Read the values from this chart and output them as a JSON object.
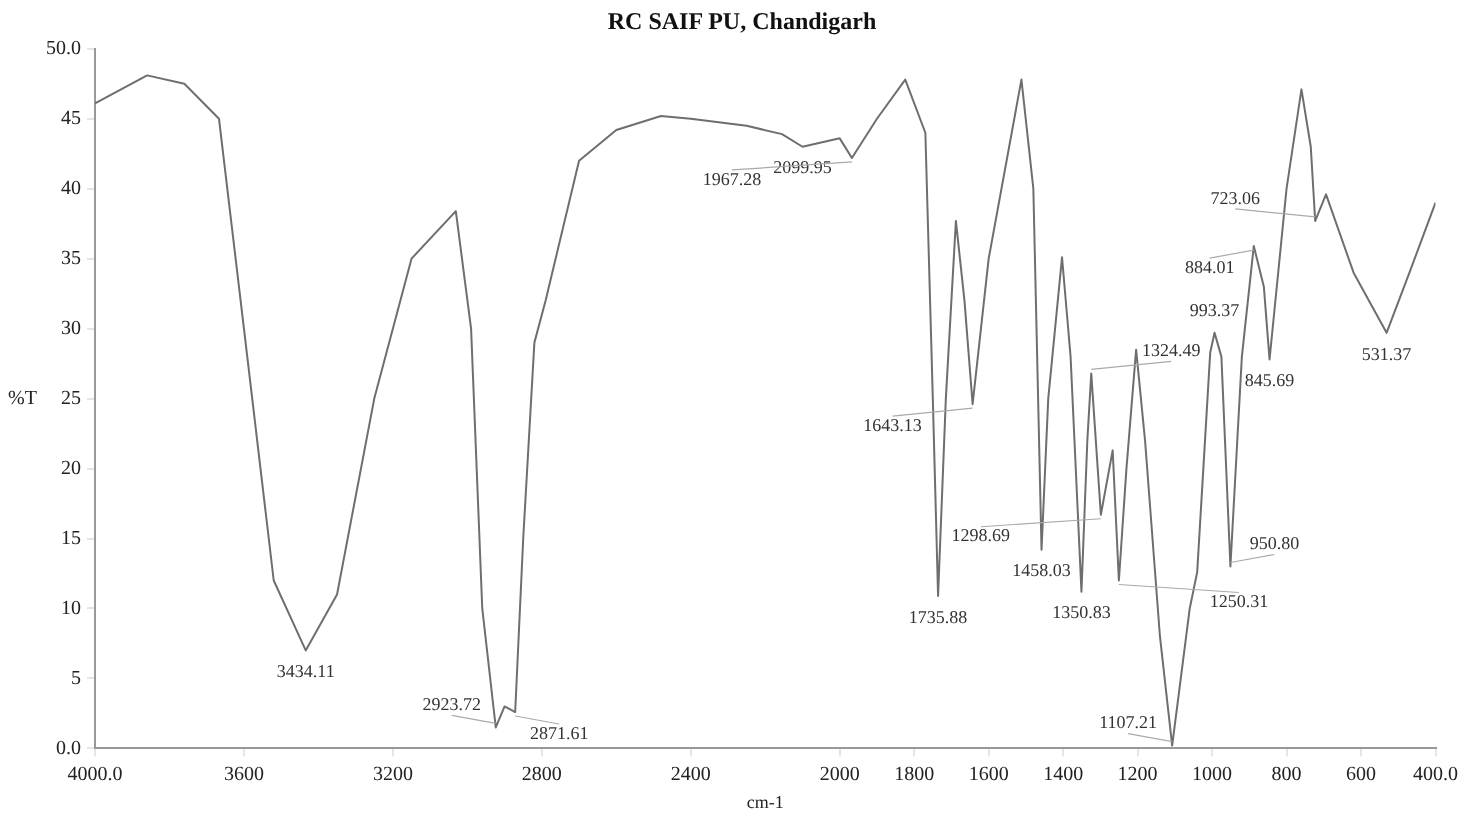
{
  "chart_data": {
    "type": "line",
    "title": "RC SAIF PU, Chandigarh",
    "xlabel": "cm-1",
    "ylabel": "%T",
    "xlim": [
      4000,
      400
    ],
    "xticks": [
      {
        "value": 4000,
        "label": "4000.0"
      },
      3600,
      3200,
      2800,
      2400,
      2000,
      1800,
      1600,
      1400,
      1200,
      1000,
      800,
      600,
      {
        "value": 400,
        "label": "400.0"
      }
    ],
    "ylim": [
      0,
      50
    ],
    "yticks": [
      {
        "value": 0,
        "label": "0.0"
      },
      5,
      10,
      15,
      20,
      25,
      30,
      35,
      40,
      45,
      {
        "value": 50,
        "label": "50.0"
      }
    ],
    "legend": false,
    "marker": "none",
    "line_style": "solid",
    "series": [
      {
        "color": "#6e6e6e",
        "x": [
          4000,
          3860,
          3760,
          3667,
          3600,
          3520,
          3434.11,
          3350,
          3250,
          3150,
          3031,
          2990,
          2960,
          2923.72,
          2900,
          2871.61,
          2850,
          2820,
          2790,
          2700,
          2600,
          2480,
          2400,
          2250,
          2155,
          2099.95,
          2000,
          1967.28,
          1900,
          1824,
          1770,
          1750,
          1735.88,
          1715,
          1688,
          1665,
          1643.13,
          1600,
          1512,
          1480,
          1458.03,
          1440,
          1403,
          1380,
          1350.83,
          1335,
          1324.49,
          1298.69,
          1267,
          1250.31,
          1230,
          1204,
          1180,
          1140,
          1107.21,
          1060,
          1040,
          1005,
          993.37,
          975,
          950.8,
          920,
          888,
          861,
          845.69,
          800,
          760,
          735,
          723.06,
          694,
          620,
          531.37,
          470,
          400
        ],
        "values": [
          46.1,
          48.1,
          47.5,
          45,
          30,
          12,
          7,
          11,
          25,
          35,
          38.4,
          30,
          10,
          1.5,
          3,
          2.6,
          15,
          29,
          32,
          42,
          44.2,
          45.2,
          45,
          44.5,
          43.9,
          43,
          43.6,
          42.2,
          45,
          47.8,
          44,
          25,
          10.9,
          25,
          37.7,
          32,
          24.6,
          35,
          47.8,
          40,
          14.2,
          25,
          35.1,
          28,
          11.2,
          22,
          26.8,
          16.7,
          21.3,
          12,
          20,
          28.5,
          22,
          8,
          0.2,
          10,
          12.6,
          28.3,
          29.7,
          28,
          13,
          28,
          35.9,
          33,
          27.8,
          40,
          47.1,
          43,
          37.7,
          39.6,
          34,
          29.7,
          34,
          39
        ]
      }
    ],
    "annotations": [
      {
        "text": "3434.11",
        "x": 3434.11,
        "y": 7
      },
      {
        "text": "2923.72",
        "x": 2923.72,
        "y": 1.5
      },
      {
        "text": "2871.61",
        "x": 2871.61,
        "y": 2.6
      },
      {
        "text": "2099.95",
        "x": 2099.95,
        "y": 43
      },
      {
        "text": "1967.28",
        "x": 1967.28,
        "y": 42.2
      },
      {
        "text": "1735.88",
        "x": 1735.88,
        "y": 10.9
      },
      {
        "text": "1643.13",
        "x": 1643.13,
        "y": 24.6
      },
      {
        "text": "1458.03",
        "x": 1458.03,
        "y": 14.2
      },
      {
        "text": "1350.83",
        "x": 1350.83,
        "y": 11.2
      },
      {
        "text": "1324.49",
        "x": 1324.49,
        "y": 26.8
      },
      {
        "text": "1298.69",
        "x": 1298.69,
        "y": 16.7
      },
      {
        "text": "1250.31",
        "x": 1250.31,
        "y": 12
      },
      {
        "text": "1107.21",
        "x": 1107.21,
        "y": 0.2
      },
      {
        "text": "993.37",
        "x": 993.37,
        "y": 29.7
      },
      {
        "text": "950.80",
        "x": 950.8,
        "y": 13
      },
      {
        "text": "884.01",
        "x": 888,
        "y": 35.9
      },
      {
        "text": "845.69",
        "x": 845.69,
        "y": 27.8
      },
      {
        "text": "723.06",
        "x": 723.06,
        "y": 37.7
      },
      {
        "text": "531.37",
        "x": 531.37,
        "y": 29.7
      }
    ]
  }
}
